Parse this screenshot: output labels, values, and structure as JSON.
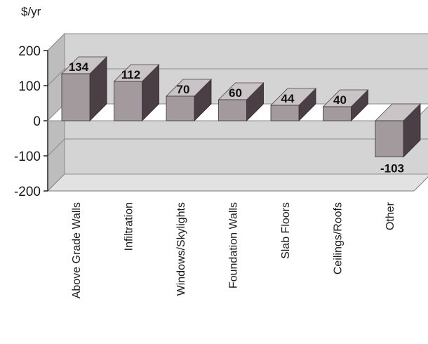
{
  "chart_data": {
    "type": "bar",
    "ylabel": "$/yr",
    "categories": [
      "Above Grade Walls",
      "Infiltration",
      "Windows/Skylights",
      "Foundation Walls",
      "Slab Floors",
      "Ceilings/Roofs",
      "Other"
    ],
    "values": [
      134,
      112,
      70,
      60,
      44,
      40,
      -103
    ],
    "value_labels": [
      "134",
      "112",
      "70",
      "60",
      "44",
      "40",
      "-103"
    ],
    "ylim": [
      -200,
      200
    ],
    "yticks": [
      200,
      100,
      0,
      -100,
      -200
    ],
    "ytick_labels": [
      "200",
      "100",
      "0",
      "-100",
      "-200"
    ],
    "grid": true,
    "three_d": true,
    "colors": {
      "bar_front": "#a29a9c",
      "bar_side": "#4a3f45",
      "bar_top": "#cbc4c6",
      "wall": "#d4d4d4",
      "floor": "#ffffff",
      "grid": "#8c8c8c"
    }
  }
}
